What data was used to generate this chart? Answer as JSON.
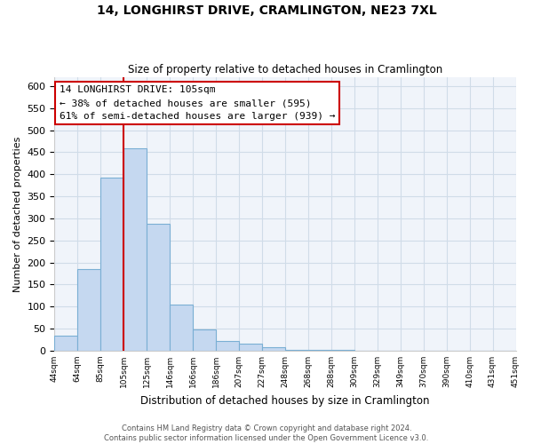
{
  "title": "14, LONGHIRST DRIVE, CRAMLINGTON, NE23 7XL",
  "subtitle": "Size of property relative to detached houses in Cramlington",
  "xlabel": "Distribution of detached houses by size in Cramlington",
  "ylabel": "Number of detached properties",
  "footer_line1": "Contains HM Land Registry data © Crown copyright and database right 2024.",
  "footer_line2": "Contains public sector information licensed under the Open Government Licence v3.0.",
  "bin_labels": [
    "44sqm",
    "64sqm",
    "85sqm",
    "105sqm",
    "125sqm",
    "146sqm",
    "166sqm",
    "186sqm",
    "207sqm",
    "227sqm",
    "248sqm",
    "268sqm",
    "288sqm",
    "309sqm",
    "329sqm",
    "349sqm",
    "370sqm",
    "390sqm",
    "410sqm",
    "431sqm",
    "451sqm"
  ],
  "bar_heights": [
    35,
    185,
    393,
    460,
    288,
    105,
    48,
    22,
    16,
    8,
    2,
    1,
    1,
    0,
    0,
    0,
    0,
    0,
    0,
    0
  ],
  "bar_color": "#c5d8f0",
  "bar_edge_color": "#7aafd4",
  "vline_color": "#cc0000",
  "ylim": [
    0,
    620
  ],
  "yticks": [
    0,
    50,
    100,
    150,
    200,
    250,
    300,
    350,
    400,
    450,
    500,
    550,
    600
  ],
  "annotation_title": "14 LONGHIRST DRIVE: 105sqm",
  "annotation_line1": "← 38% of detached houses are smaller (595)",
  "annotation_line2": "61% of semi-detached houses are larger (939) →",
  "grid_color": "#d0dce8",
  "background_color": "#f0f4fa"
}
